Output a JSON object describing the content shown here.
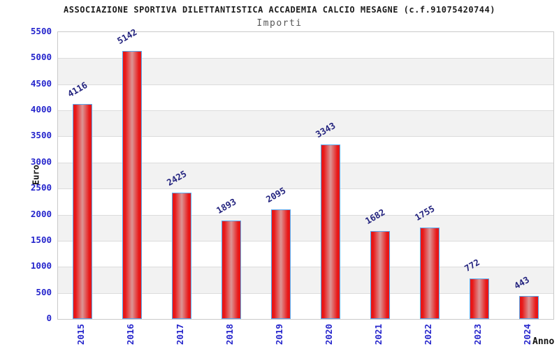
{
  "chart_data": {
    "type": "bar",
    "title": "ASSOCIAZIONE SPORTIVA DILETTANTISTICA ACCADEMIA CALCIO MESAGNE (c.f.91075420744)",
    "subtitle": "Importi",
    "xlabel": "Anno",
    "ylabel": "Euro",
    "categories": [
      "2015",
      "2016",
      "2017",
      "2018",
      "2019",
      "2020",
      "2021",
      "2022",
      "2023",
      "2024"
    ],
    "values": [
      4116,
      5142,
      2425,
      1893,
      2095,
      3343,
      1682,
      1755,
      772,
      443
    ],
    "ylim": [
      0,
      5500
    ],
    "ytick_step": 500,
    "grid": true,
    "legend": false,
    "value_labels_shown": true,
    "band_pattern": "alternating horizontal bands, white then gray, starting white at top"
  },
  "colors": {
    "background": "#ffffff",
    "bar_fill": "#e81717",
    "bar_fill_center": "#dc9595",
    "bar_border": "#58a8ee",
    "tick_label": "#2525cc",
    "value_label": "#24247f",
    "band_alt": "#f2f2f2",
    "gridline": "#dcdcdc",
    "plot_border": "#c9c9c9",
    "title": "#1c1c1c",
    "subtitle": "#575757",
    "axis_title": "#111111"
  }
}
